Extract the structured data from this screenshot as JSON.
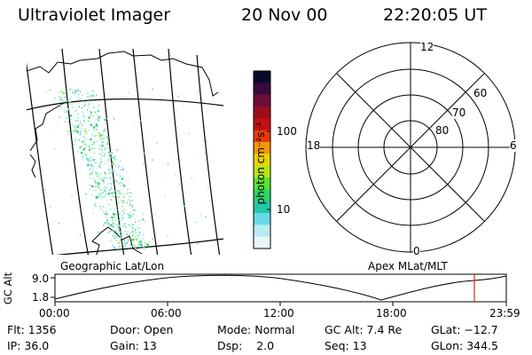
{
  "header": {
    "instrument": "Ultraviolet Imager",
    "date": "20 Nov 00",
    "time": "22:20:05 UT"
  },
  "colorbar": {
    "unit_label": "photon cm⁻²s⁻¹",
    "ticks": [
      "100",
      "10"
    ],
    "colors": [
      "#0a0a28",
      "#3a0a3a",
      "#6a0f3a",
      "#9a0f1a",
      "#c41010",
      "#e83a0a",
      "#f3960a",
      "#e8d20a",
      "#b8e51a",
      "#5ae030",
      "#2ed46a",
      "#24c8a8",
      "#6ad8e8",
      "#b8ecf2",
      "#e8f6f8"
    ]
  },
  "labels": {
    "geo_map": "Geographic Lat/Lon",
    "apex_map": "Apex MLat/MLT",
    "altitude_axis": "GC Alt",
    "alt_max": "9.0",
    "alt_min": "1.8"
  },
  "polar_plot": {
    "mlt_labels": {
      "top": "12",
      "left": "18",
      "right": "6",
      "bottom": "0"
    },
    "lat_labels": [
      "60",
      "70",
      "80"
    ]
  },
  "timeline": {
    "ticks": [
      "00:00",
      "06:00",
      "12:00",
      "18:00",
      "23:59"
    ],
    "current_marker_color": "#e02020"
  },
  "info": {
    "flt_label": "Flt:",
    "flt_value": "1356",
    "ip_label": "IP:",
    "ip_value": "36.0",
    "door_label": "Door:",
    "door_value": "Open",
    "gain_label": "Gain:",
    "gain_value": "13",
    "mode_label": "Mode:",
    "mode_value": "Normal",
    "dsp_label": "Dsp:",
    "dsp_value": "2.0",
    "gcalt_label": "GC Alt:",
    "gcalt_value": "7.4 Re",
    "seq_label": "Seq:",
    "seq_value": "13",
    "glat_label": "GLat:",
    "glat_value": "−12.7",
    "glon_label": "GLon:",
    "glon_value": "344.5"
  }
}
